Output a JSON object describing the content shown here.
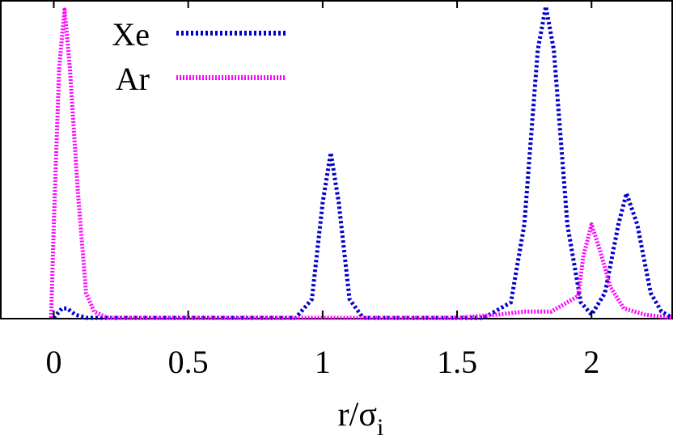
{
  "chart_data": {
    "type": "line",
    "xlabel": "r/σ",
    "xlabel_subscript": "i",
    "ylabel": "",
    "xlim": [
      -0.2,
      2.3
    ],
    "xticks": [
      0,
      0.5,
      1,
      1.5,
      2
    ],
    "xtick_labels": [
      "0",
      "0.5",
      "1",
      "1.5",
      "2"
    ],
    "ylim": [
      0,
      1
    ],
    "yticks": [],
    "grid": false,
    "legend_placement": "top-left",
    "series": [
      {
        "name": "Xe",
        "color": "#0000cc",
        "style": "dotted",
        "points": [
          [
            0.0,
            0.0
          ],
          [
            0.03,
            0.03
          ],
          [
            0.05,
            0.03
          ],
          [
            0.08,
            0.01
          ],
          [
            0.12,
            0.0
          ],
          [
            0.9,
            0.0
          ],
          [
            0.96,
            0.06
          ],
          [
            1.0,
            0.37
          ],
          [
            1.03,
            0.53
          ],
          [
            1.06,
            0.37
          ],
          [
            1.1,
            0.06
          ],
          [
            1.15,
            0.0
          ],
          [
            1.6,
            0.0
          ],
          [
            1.7,
            0.05
          ],
          [
            1.75,
            0.3
          ],
          [
            1.8,
            0.86
          ],
          [
            1.83,
            1.0
          ],
          [
            1.86,
            0.86
          ],
          [
            1.91,
            0.3
          ],
          [
            1.96,
            0.05
          ],
          [
            2.0,
            0.01
          ],
          [
            2.05,
            0.08
          ],
          [
            2.1,
            0.3
          ],
          [
            2.13,
            0.4
          ],
          [
            2.17,
            0.3
          ],
          [
            2.22,
            0.08
          ],
          [
            2.26,
            0.02
          ],
          [
            2.3,
            0.0
          ]
        ]
      },
      {
        "name": "Ar",
        "color": "#ff00ff",
        "style": "dashed",
        "points": [
          [
            -0.01,
            0.0
          ],
          [
            0.0,
            0.3
          ],
          [
            0.02,
            0.8
          ],
          [
            0.04,
            0.99
          ],
          [
            0.06,
            0.8
          ],
          [
            0.09,
            0.4
          ],
          [
            0.12,
            0.08
          ],
          [
            0.15,
            0.02
          ],
          [
            0.2,
            0.0
          ],
          [
            1.5,
            0.0
          ],
          [
            1.65,
            0.01
          ],
          [
            1.75,
            0.02
          ],
          [
            1.85,
            0.02
          ],
          [
            1.95,
            0.07
          ],
          [
            1.97,
            0.2
          ],
          [
            2.0,
            0.3
          ],
          [
            2.03,
            0.22
          ],
          [
            2.07,
            0.1
          ],
          [
            2.12,
            0.03
          ],
          [
            2.2,
            0.01
          ],
          [
            2.3,
            0.0
          ]
        ]
      }
    ]
  }
}
